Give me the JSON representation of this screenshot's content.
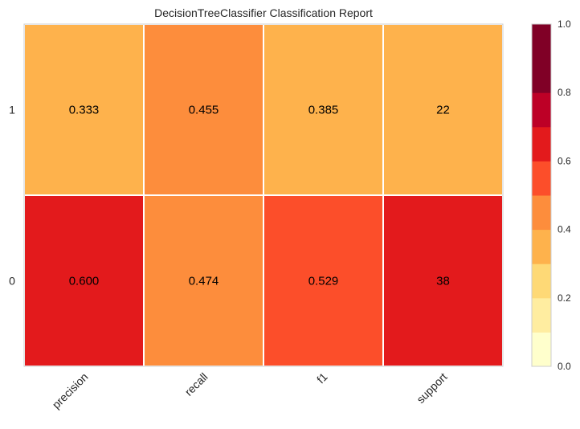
{
  "chart_data": {
    "type": "heatmap",
    "title": "DecisionTreeClassifier Classification Report",
    "columns": [
      "precision",
      "recall",
      "f1",
      "support"
    ],
    "rows": [
      "1",
      "0"
    ],
    "display_values": [
      [
        "0.333",
        "0.455",
        "0.385",
        "22"
      ],
      [
        "0.600",
        "0.474",
        "0.529",
        "38"
      ]
    ],
    "color_values": [
      [
        0.333,
        0.455,
        0.385,
        0.367
      ],
      [
        0.6,
        0.474,
        0.529,
        0.633
      ]
    ],
    "colorbar": {
      "ticks": [
        "0.0",
        "0.2",
        "0.4",
        "0.6",
        "0.8",
        "1.0"
      ],
      "range": [
        0,
        1
      ],
      "bins": 10,
      "colors": [
        "#ffffcc",
        "#ffeda0",
        "#fed976",
        "#feb24c",
        "#fd8d3c",
        "#fc4e2a",
        "#e31a1c",
        "#bd0026",
        "#800026",
        "#800026"
      ]
    },
    "grid": false
  }
}
